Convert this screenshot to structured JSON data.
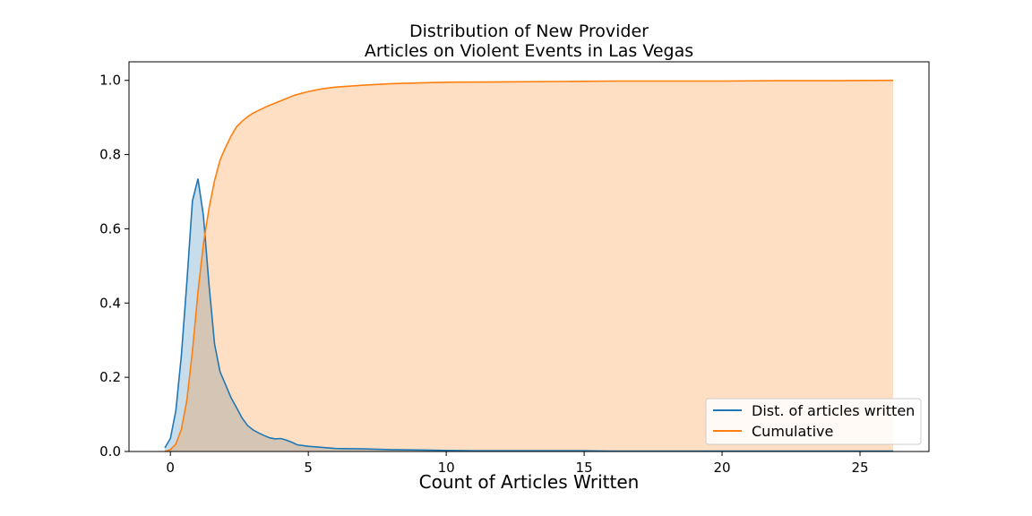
{
  "chart_data": {
    "type": "area",
    "title": [
      "Distribution of New Provider",
      "Articles on Violent Events in Las Vegas"
    ],
    "xlabel": "Count of Articles Written",
    "ylabel": "",
    "xlim": [
      -1.5,
      27.5
    ],
    "ylim": [
      0,
      1.05
    ],
    "x_ticks": [
      0,
      5,
      10,
      15,
      20,
      25
    ],
    "y_ticks": [
      0.0,
      0.2,
      0.4,
      0.6,
      0.8,
      1.0
    ],
    "x_tick_labels": [
      "0",
      "5",
      "10",
      "15",
      "20",
      "25"
    ],
    "y_tick_labels": [
      "0.0",
      "0.2",
      "0.4",
      "0.6",
      "0.8",
      "1.0"
    ],
    "grid": false,
    "legend_position": "lower-right",
    "series": [
      {
        "name": "Dist. of articles written",
        "color": "#1f77b4",
        "fill": "#1f77b4",
        "fill_opacity": 0.25,
        "x": [
          -0.2,
          0.0,
          0.2,
          0.4,
          0.6,
          0.8,
          1.0,
          1.2,
          1.4,
          1.6,
          1.8,
          2.0,
          2.2,
          2.4,
          2.6,
          2.8,
          3.0,
          3.2,
          3.4,
          3.6,
          3.8,
          4.0,
          4.2,
          4.4,
          4.6,
          5.0,
          5.5,
          6.0,
          7.0,
          8.0,
          9.0,
          10.0,
          11.0,
          12.0,
          13.0,
          14.0,
          15.0,
          16.0,
          17.0,
          18.0,
          19.0,
          20.0,
          21.0,
          22.0,
          23.0,
          24.0,
          25.0,
          26.2
        ],
        "y": [
          0.01,
          0.035,
          0.11,
          0.26,
          0.46,
          0.675,
          0.735,
          0.635,
          0.45,
          0.29,
          0.215,
          0.18,
          0.145,
          0.118,
          0.09,
          0.07,
          0.058,
          0.05,
          0.043,
          0.037,
          0.034,
          0.035,
          0.031,
          0.025,
          0.018,
          0.014,
          0.011,
          0.008,
          0.007,
          0.005,
          0.004,
          0.003,
          0.002,
          0.002,
          0.002,
          0.002,
          0.002,
          0.001,
          0.001,
          0.001,
          0.001,
          0.001,
          0.001,
          0.001,
          0.001,
          0.001,
          0.001,
          0.001
        ]
      },
      {
        "name": "Cumulative",
        "color": "#ff7f0e",
        "fill": "#ff7f0e",
        "fill_opacity": 0.25,
        "x": [
          -0.2,
          0.0,
          0.2,
          0.4,
          0.6,
          0.8,
          1.0,
          1.2,
          1.4,
          1.6,
          1.8,
          2.0,
          2.2,
          2.4,
          2.6,
          2.8,
          3.0,
          3.5,
          4.0,
          4.5,
          5.0,
          5.5,
          6.0,
          7.0,
          8.0,
          9.0,
          10.0,
          12.0,
          14.0,
          16.0,
          18.0,
          20.0,
          22.0,
          24.0,
          26.2
        ],
        "y": [
          0.0,
          0.005,
          0.02,
          0.06,
          0.14,
          0.27,
          0.43,
          0.56,
          0.655,
          0.73,
          0.785,
          0.82,
          0.85,
          0.875,
          0.89,
          0.902,
          0.912,
          0.93,
          0.945,
          0.96,
          0.97,
          0.977,
          0.982,
          0.987,
          0.991,
          0.993,
          0.995,
          0.996,
          0.997,
          0.998,
          0.998,
          0.998,
          0.999,
          0.999,
          1.0
        ]
      }
    ]
  }
}
